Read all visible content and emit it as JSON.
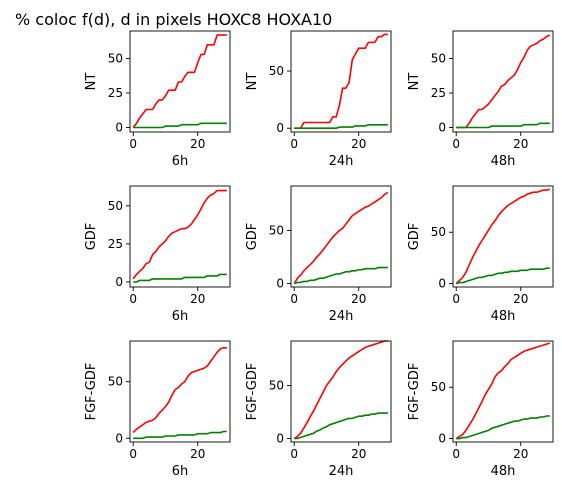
{
  "figure": {
    "title": "% coloc f(d), d in pixels HOXC8  HOXA10"
  },
  "colors": {
    "red": "#ff0000",
    "green": "#008000"
  },
  "chart_data": [
    {
      "type": "line",
      "ylabel": "NT",
      "xlabel": "6h",
      "xlim": [
        -1,
        30
      ],
      "ylim": [
        -3.3,
        70
      ],
      "xticks": [
        0,
        20
      ],
      "yticks": [
        0,
        25,
        50
      ],
      "x": [
        0,
        1,
        2,
        3,
        4,
        5,
        6,
        7,
        8,
        9,
        10,
        11,
        12,
        13,
        14,
        15,
        16,
        17,
        18,
        19,
        20,
        21,
        22,
        23,
        24,
        25,
        26,
        27,
        28,
        29
      ],
      "series": [
        {
          "color": "red",
          "values": [
            0,
            3,
            7,
            10,
            13,
            13,
            13,
            17,
            20,
            20,
            23,
            27,
            27,
            27,
            33,
            33,
            37,
            40,
            40,
            40,
            47,
            53,
            53,
            60,
            60,
            60,
            67,
            67,
            67,
            67
          ]
        },
        {
          "color": "green",
          "values": [
            0,
            0,
            0,
            0,
            0,
            0,
            0,
            0,
            0,
            0,
            1,
            1,
            1,
            1,
            1,
            2,
            2,
            2,
            2,
            2,
            2,
            3,
            3,
            3,
            3,
            3,
            3,
            3,
            3,
            3
          ]
        }
      ]
    },
    {
      "type": "line",
      "ylabel": "NT",
      "xlabel": "24h",
      "xlim": [
        -1,
        30
      ],
      "ylim": [
        -3.3,
        85
      ],
      "xticks": [
        0,
        20
      ],
      "yticks": [
        0,
        50
      ],
      "x": [
        0,
        1,
        2,
        3,
        4,
        5,
        6,
        7,
        8,
        9,
        10,
        11,
        12,
        13,
        14,
        15,
        16,
        17,
        18,
        19,
        20,
        21,
        22,
        23,
        24,
        25,
        26,
        27,
        28,
        29
      ],
      "series": [
        {
          "color": "red",
          "values": [
            0,
            0,
            0,
            5,
            5,
            5,
            5,
            5,
            5,
            5,
            5,
            5,
            10,
            10,
            20,
            35,
            35,
            40,
            60,
            65,
            70,
            70,
            70,
            75,
            75,
            75,
            80,
            80,
            82,
            82
          ]
        },
        {
          "color": "green",
          "values": [
            0,
            0,
            0,
            0,
            0,
            0,
            0,
            0,
            0,
            0,
            0,
            0,
            0,
            0,
            1,
            1,
            1,
            1,
            1,
            2,
            2,
            2,
            2,
            3,
            3,
            3,
            3,
            3,
            3,
            3
          ]
        }
      ]
    },
    {
      "type": "line",
      "ylabel": "NT",
      "xlabel": "48h",
      "xlim": [
        -1,
        30
      ],
      "ylim": [
        -3.3,
        70
      ],
      "xticks": [
        0,
        20
      ],
      "yticks": [
        0,
        25,
        50
      ],
      "x": [
        0,
        1,
        2,
        3,
        4,
        5,
        6,
        7,
        8,
        9,
        10,
        11,
        12,
        13,
        14,
        15,
        16,
        17,
        18,
        19,
        20,
        21,
        22,
        23,
        24,
        25,
        26,
        27,
        28,
        29
      ],
      "series": [
        {
          "color": "red",
          "values": [
            0,
            0,
            0,
            0,
            3,
            7,
            10,
            13,
            13,
            15,
            17,
            20,
            23,
            26,
            30,
            31,
            34,
            36,
            38,
            42,
            47,
            51,
            56,
            59,
            60,
            61,
            63,
            64,
            66,
            67
          ]
        },
        {
          "color": "green",
          "values": [
            0,
            0,
            0,
            0,
            0,
            0,
            0,
            0,
            0,
            0,
            0,
            1,
            1,
            1,
            1,
            1,
            1,
            1,
            1,
            1,
            1,
            2,
            2,
            2,
            2,
            2,
            3,
            3,
            3,
            3
          ]
        }
      ]
    },
    {
      "type": "line",
      "ylabel": "GDF",
      "xlabel": "6h",
      "xlim": [
        -1,
        30
      ],
      "ylim": [
        -3.3,
        63
      ],
      "xticks": [
        0,
        20
      ],
      "yticks": [
        0,
        25,
        50
      ],
      "x": [
        0,
        1,
        2,
        3,
        4,
        5,
        6,
        7,
        8,
        9,
        10,
        11,
        12,
        13,
        14,
        15,
        16,
        17,
        18,
        19,
        20,
        21,
        22,
        23,
        24,
        25,
        26,
        27,
        28,
        29
      ],
      "series": [
        {
          "color": "red",
          "values": [
            2,
            5,
            7,
            9,
            12,
            13,
            18,
            20,
            23,
            25,
            27,
            30,
            32,
            33,
            34,
            35,
            35,
            36,
            38,
            41,
            44,
            48,
            52,
            55,
            57,
            58,
            60,
            60,
            60,
            60
          ]
        },
        {
          "color": "green",
          "values": [
            0,
            0,
            1,
            1,
            1,
            1,
            2,
            2,
            2,
            2,
            2,
            2,
            2,
            2,
            2,
            2,
            3,
            3,
            3,
            3,
            3,
            3,
            3,
            4,
            4,
            4,
            4,
            5,
            5,
            5
          ]
        }
      ]
    },
    {
      "type": "line",
      "ylabel": "GDF",
      "xlabel": "24h",
      "xlim": [
        -1,
        30
      ],
      "ylim": [
        -3.3,
        92
      ],
      "xticks": [
        0,
        20
      ],
      "yticks": [
        0,
        50
      ],
      "x": [
        0,
        1,
        2,
        3,
        4,
        5,
        6,
        7,
        8,
        9,
        10,
        11,
        12,
        13,
        14,
        15,
        16,
        17,
        18,
        19,
        20,
        21,
        22,
        23,
        24,
        25,
        26,
        27,
        28,
        29
      ],
      "series": [
        {
          "color": "red",
          "values": [
            0,
            5,
            8,
            12,
            15,
            18,
            21,
            25,
            28,
            32,
            36,
            40,
            44,
            47,
            50,
            52,
            56,
            60,
            64,
            66,
            68,
            70,
            72,
            73,
            75,
            77,
            79,
            81,
            84,
            86
          ]
        },
        {
          "color": "green",
          "values": [
            0,
            1,
            1,
            2,
            2,
            3,
            3,
            4,
            5,
            5,
            6,
            7,
            8,
            9,
            9,
            10,
            11,
            11,
            12,
            12,
            13,
            13,
            14,
            14,
            14,
            14,
            15,
            15,
            15,
            15
          ]
        }
      ]
    },
    {
      "type": "line",
      "ylabel": "GDF",
      "xlabel": "48h",
      "xlim": [
        -1,
        30
      ],
      "ylim": [
        -3.3,
        95
      ],
      "xticks": [
        0,
        20
      ],
      "yticks": [
        0,
        50
      ],
      "x": [
        0,
        1,
        2,
        3,
        4,
        5,
        6,
        7,
        8,
        9,
        10,
        11,
        12,
        13,
        14,
        15,
        16,
        17,
        18,
        19,
        20,
        21,
        22,
        23,
        24,
        25,
        26,
        27,
        28,
        29
      ],
      "series": [
        {
          "color": "red",
          "values": [
            0,
            3,
            6,
            11,
            18,
            25,
            31,
            37,
            42,
            47,
            52,
            57,
            61,
            66,
            70,
            73,
            76,
            78,
            80,
            82,
            84,
            85,
            87,
            88,
            89,
            89,
            90,
            91,
            91,
            92
          ]
        },
        {
          "color": "green",
          "values": [
            0,
            1,
            1,
            2,
            3,
            4,
            5,
            6,
            6,
            7,
            8,
            8,
            9,
            10,
            10,
            11,
            11,
            12,
            12,
            12,
            13,
            13,
            13,
            14,
            14,
            14,
            14,
            14,
            15,
            15
          ]
        }
      ]
    },
    {
      "type": "line",
      "ylabel": "FGF-GDF",
      "xlabel": "6h",
      "xlim": [
        -1,
        30
      ],
      "ylim": [
        -3.3,
        86
      ],
      "xticks": [
        0,
        20
      ],
      "yticks": [
        0,
        50
      ],
      "x": [
        0,
        1,
        2,
        3,
        4,
        5,
        6,
        7,
        8,
        9,
        10,
        11,
        12,
        13,
        14,
        15,
        16,
        17,
        18,
        19,
        20,
        21,
        22,
        23,
        24,
        25,
        26,
        27,
        28,
        29
      ],
      "series": [
        {
          "color": "red",
          "values": [
            5,
            8,
            10,
            12,
            14,
            15,
            16,
            18,
            22,
            25,
            28,
            32,
            38,
            43,
            45,
            48,
            50,
            55,
            58,
            59,
            60,
            61,
            62,
            64,
            68,
            72,
            76,
            79,
            80,
            80
          ]
        },
        {
          "color": "green",
          "values": [
            0,
            0,
            0,
            0,
            1,
            1,
            1,
            1,
            1,
            1,
            2,
            2,
            2,
            2,
            3,
            3,
            3,
            3,
            3,
            3,
            4,
            4,
            4,
            4,
            5,
            5,
            5,
            5,
            6,
            6
          ]
        }
      ]
    },
    {
      "type": "line",
      "ylabel": "FGF-GDF",
      "xlabel": "24h",
      "xlim": [
        -1,
        30
      ],
      "ylim": [
        -3.3,
        92
      ],
      "xticks": [
        0,
        20
      ],
      "yticks": [
        0,
        50
      ],
      "x": [
        0,
        1,
        2,
        3,
        4,
        5,
        6,
        7,
        8,
        9,
        10,
        11,
        12,
        13,
        14,
        15,
        16,
        17,
        18,
        19,
        20,
        21,
        22,
        23,
        24,
        25,
        26,
        27,
        28,
        29
      ],
      "series": [
        {
          "color": "red",
          "values": [
            0,
            2,
            5,
            10,
            15,
            21,
            26,
            32,
            38,
            44,
            50,
            54,
            58,
            63,
            67,
            70,
            73,
            76,
            78,
            80,
            82,
            84,
            86,
            87,
            88,
            89,
            90,
            91,
            92,
            92
          ]
        },
        {
          "color": "green",
          "values": [
            0,
            0,
            1,
            2,
            3,
            4,
            5,
            7,
            8,
            10,
            11,
            13,
            14,
            15,
            16,
            17,
            18,
            19,
            19,
            20,
            21,
            21,
            22,
            22,
            23,
            23,
            24,
            24,
            24,
            24
          ]
        }
      ]
    },
    {
      "type": "line",
      "ylabel": "FGF-GDF",
      "xlabel": "48h",
      "xlim": [
        -1,
        30
      ],
      "ylim": [
        -3.3,
        95
      ],
      "xticks": [
        0,
        20
      ],
      "yticks": [
        0,
        50
      ],
      "x": [
        0,
        1,
        2,
        3,
        4,
        5,
        6,
        7,
        8,
        9,
        10,
        11,
        12,
        13,
        14,
        15,
        16,
        17,
        18,
        19,
        20,
        21,
        22,
        23,
        24,
        25,
        26,
        27,
        28,
        29
      ],
      "series": [
        {
          "color": "red",
          "values": [
            0,
            2,
            4,
            8,
            13,
            18,
            24,
            30,
            36,
            43,
            48,
            53,
            60,
            64,
            66,
            70,
            73,
            77,
            79,
            81,
            83,
            85,
            86,
            87,
            88,
            89,
            90,
            91,
            92,
            93
          ]
        },
        {
          "color": "green",
          "values": [
            0,
            0,
            1,
            1,
            2,
            3,
            4,
            5,
            6,
            7,
            8,
            10,
            11,
            12,
            13,
            14,
            15,
            16,
            17,
            17,
            18,
            19,
            19,
            20,
            20,
            20,
            21,
            21,
            22,
            22
          ]
        }
      ]
    }
  ]
}
